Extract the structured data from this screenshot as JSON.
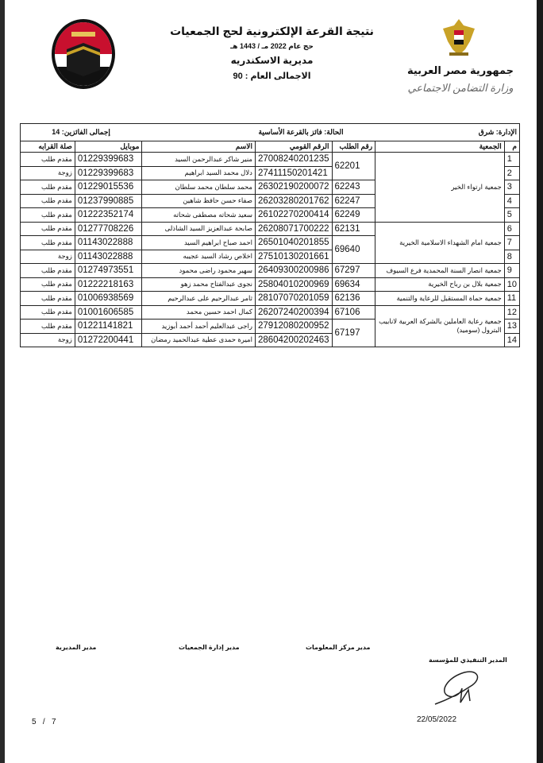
{
  "header": {
    "title": "نتيجة القرعة الإلكترونية لحج الجمعيات",
    "subtitle": "حج عام 2022 مـ / 1443 هـ",
    "directorate": "مديرية الاسكندريه",
    "grand_total": "الاجمالى العام : 90",
    "republic": "جمهورية مصر العربية",
    "ministry": "وزارة التضامن الاجتماعي"
  },
  "info": {
    "administration": "الإدارة:  شرق",
    "status": "الحالة:  فائز بالقرعة الأساسية",
    "winners_total": "إجمالى الفائزين:  14"
  },
  "columns": {
    "m": "م",
    "association": "الجمعية",
    "request_no": "رقم الطلب",
    "national_id": "الرقم القومي",
    "name": "الاسم",
    "mobile": "موبايل",
    "relation": "صلة القرابه"
  },
  "associations": [
    "جمعية ارتواء الخير",
    "جمعية امام الشهداء الاسلامية الخيرية",
    "جمعية انصار السنة المحمدية فرع السيوف",
    "جمعية بلال بن رباح الخيرية",
    "جمعية حماة المستقبل للرعاية والتنمية",
    "جمعية رعاية العاملين بالشركة العربية لانابيب البترول (سوميد)"
  ],
  "requests": [
    "62201",
    "62243",
    "62247",
    "62249",
    "62131",
    "69640",
    "67297",
    "69634",
    "62136",
    "67106",
    "67197"
  ],
  "rows": [
    {
      "m": "1",
      "national_id": "27008240201235",
      "name": "منير شاكر عبدالرحمن السيد",
      "mobile": "01229399683",
      "relation": "مقدم طلب"
    },
    {
      "m": "2",
      "national_id": "27411150201421",
      "name": "دلال محمد السيد ابراهيم",
      "mobile": "01229399683",
      "relation": "زوجة"
    },
    {
      "m": "3",
      "national_id": "26302190200072",
      "name": "محمد سلطان محمد سلطان",
      "mobile": "01229015536",
      "relation": "مقدم طلب"
    },
    {
      "m": "4",
      "national_id": "26203280201762",
      "name": "صفاء حسن حافظ شاهين",
      "mobile": "01237990885",
      "relation": "مقدم طلب"
    },
    {
      "m": "5",
      "national_id": "26102270200414",
      "name": "سعيد شحاته مصطفى شحاته",
      "mobile": "01222352174",
      "relation": "مقدم طلب"
    },
    {
      "m": "6",
      "national_id": "26208071700222",
      "name": "صابحة عبدالعزيز السيد الشاذلى",
      "mobile": "01277708226",
      "relation": "مقدم طلب"
    },
    {
      "m": "7",
      "national_id": "26501040201855",
      "name": "احمد صباح ابراهيم السيد",
      "mobile": "01143022888",
      "relation": "مقدم طلب"
    },
    {
      "m": "8",
      "national_id": "27510130201661",
      "name": "اخلاص رشاد السيد عجيبه",
      "mobile": "01143022888",
      "relation": "زوجة"
    },
    {
      "m": "9",
      "national_id": "26409300200986",
      "name": "سهير محمود راضى محمود",
      "mobile": "01274973551",
      "relation": "مقدم طلب"
    },
    {
      "m": "10",
      "national_id": "25804010200969",
      "name": "نجوى عبدالفتاح محمد زهو",
      "mobile": "01222218163",
      "relation": "مقدم طلب"
    },
    {
      "m": "11",
      "national_id": "28107070201059",
      "name": "ثامر عبدالرحيم على عبدالرحيم",
      "mobile": "01006938569",
      "relation": "مقدم طلب"
    },
    {
      "m": "12",
      "national_id": "26207240200394",
      "name": "كمال احمد حسين محمد",
      "mobile": "01001606585",
      "relation": "مقدم طلب"
    },
    {
      "m": "13",
      "national_id": "27912080200952",
      "name": "راجى عبدالعليم أحمد أحمد أبوزيد",
      "mobile": "01221141821",
      "relation": "مقدم طلب"
    },
    {
      "m": "14",
      "national_id": "28604200202463",
      "name": "اميرة حمدى عطية عبدالحميد رمضان",
      "mobile": "01272200441",
      "relation": "زوجة"
    }
  ],
  "footer": {
    "sig_directorate": "مدير المديرية",
    "sig_associations": "مدير إدارة الجمعيات",
    "sig_info_center": "مدير مركز المعلومات",
    "sig_executive": "المدير التنفيذي للمؤسسة",
    "date": "22/05/2022",
    "page": "5   /   7"
  },
  "colors": {
    "flag_red": "#c8102e",
    "flag_black": "#111111",
    "eagle_gold": "#c9a227"
  }
}
